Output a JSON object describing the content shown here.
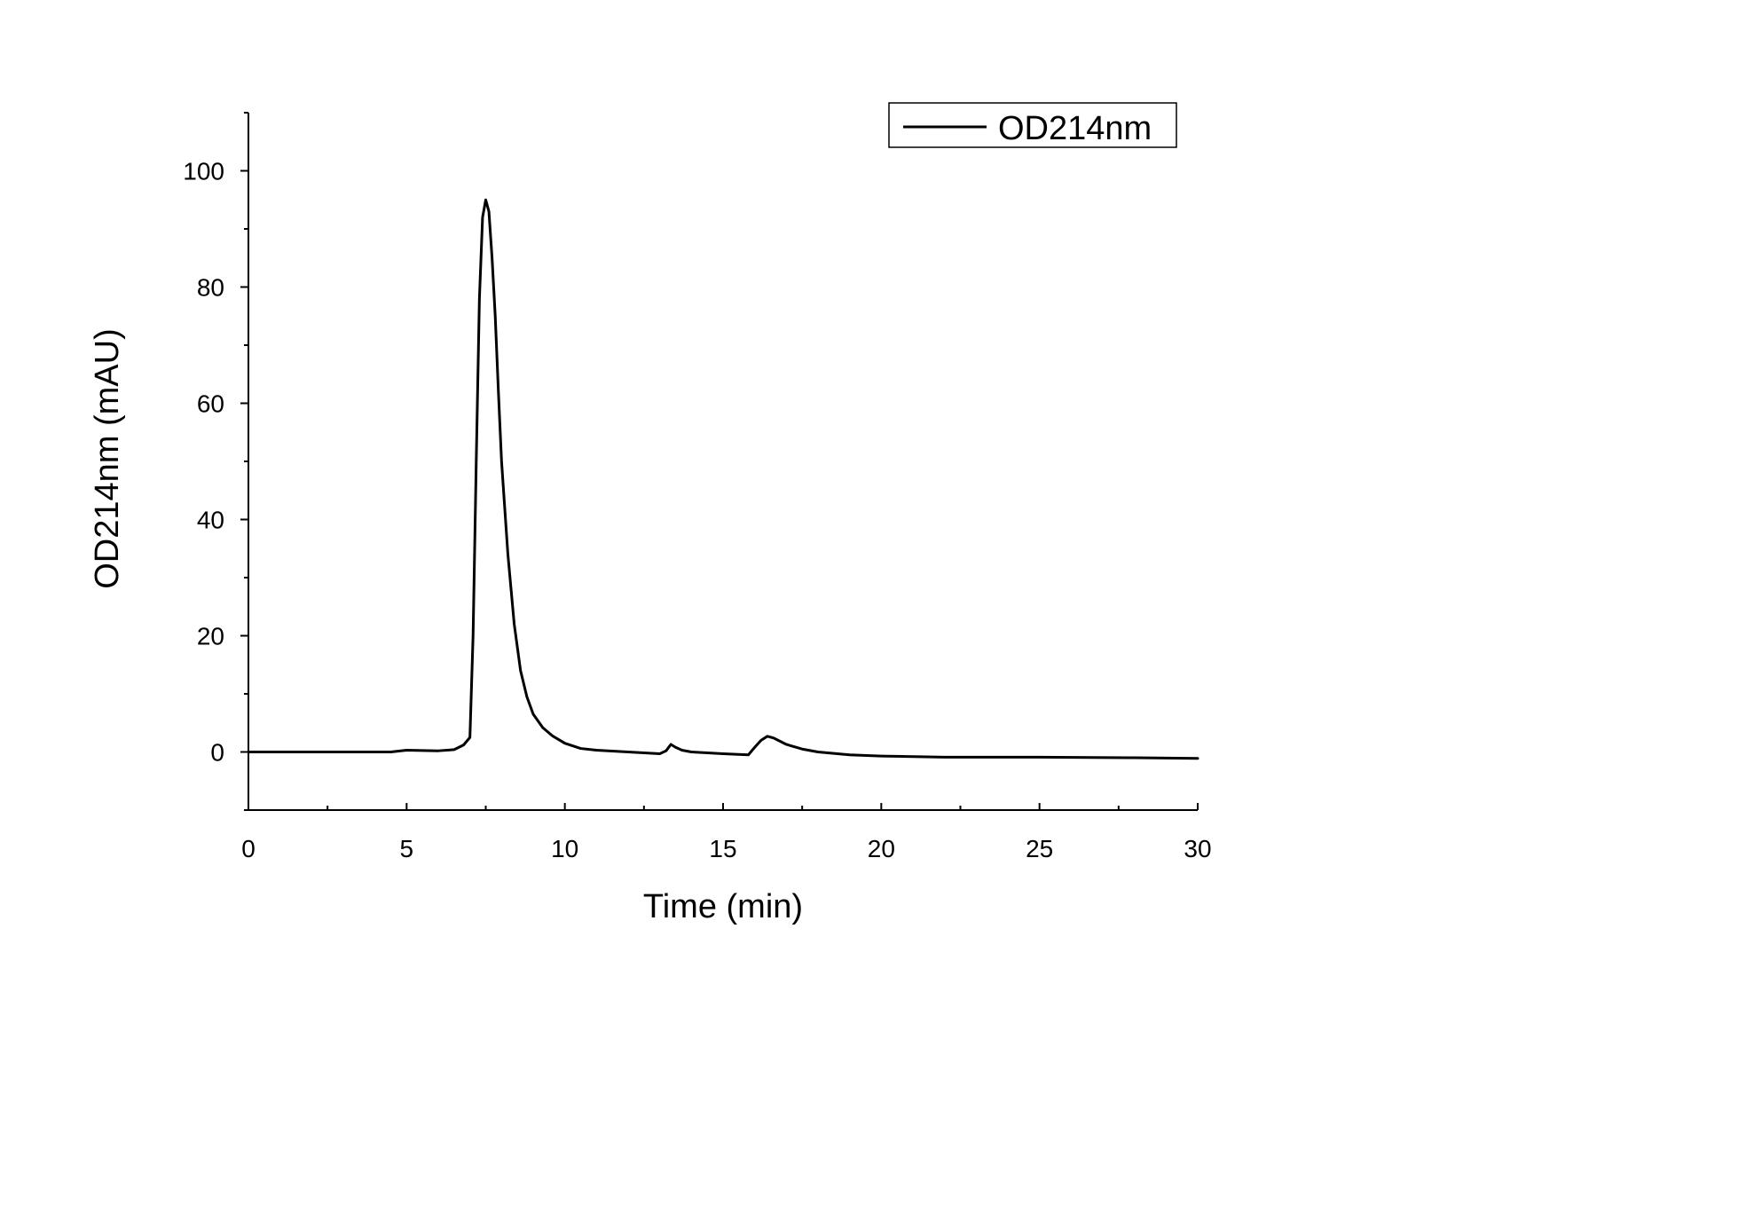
{
  "chart_data": {
    "type": "line",
    "xlabel": "Time (min)",
    "ylabel": "OD214nm (mAU)",
    "xlim": [
      0,
      30
    ],
    "ylim": [
      -10,
      110
    ],
    "x_ticks": [
      0,
      5,
      10,
      15,
      20,
      25,
      30
    ],
    "x_tick_labels": [
      "0",
      "5",
      "10",
      "15",
      "20",
      "25",
      "30"
    ],
    "y_ticks": [
      0,
      20,
      40,
      60,
      80,
      100
    ],
    "y_tick_labels": [
      "0",
      "20",
      "40",
      "60",
      "80",
      "100"
    ],
    "grid": false,
    "legend": {
      "position": "top-right",
      "entries": [
        "OD214nm"
      ]
    },
    "series": [
      {
        "name": "OD214nm",
        "color": "#000000",
        "x": [
          0,
          4.5,
          5.0,
          6.0,
          6.5,
          6.8,
          7.0,
          7.1,
          7.2,
          7.3,
          7.4,
          7.5,
          7.6,
          7.7,
          7.8,
          7.9,
          8.0,
          8.2,
          8.4,
          8.6,
          8.8,
          9.0,
          9.3,
          9.6,
          10.0,
          10.5,
          11.0,
          12.0,
          13.0,
          13.2,
          13.35,
          13.5,
          13.7,
          14.0,
          15.0,
          15.8,
          16.0,
          16.2,
          16.4,
          16.6,
          17.0,
          17.5,
          18.0,
          19.0,
          20.0,
          22.0,
          25.0,
          28.0,
          30.0
        ],
        "y": [
          0,
          0,
          0.3,
          0.2,
          0.4,
          1.2,
          2.5,
          20,
          50,
          78,
          92,
          95,
          93,
          85,
          75,
          62,
          50,
          34,
          22,
          14,
          9.5,
          6.5,
          4.2,
          2.8,
          1.5,
          0.6,
          0.3,
          0.0,
          -0.3,
          0.2,
          1.3,
          0.8,
          0.3,
          0.0,
          -0.3,
          -0.5,
          0.8,
          2.0,
          2.7,
          2.4,
          1.3,
          0.5,
          0.0,
          -0.5,
          -0.7,
          -0.9,
          -0.9,
          -1.0,
          -1.1
        ]
      }
    ]
  }
}
